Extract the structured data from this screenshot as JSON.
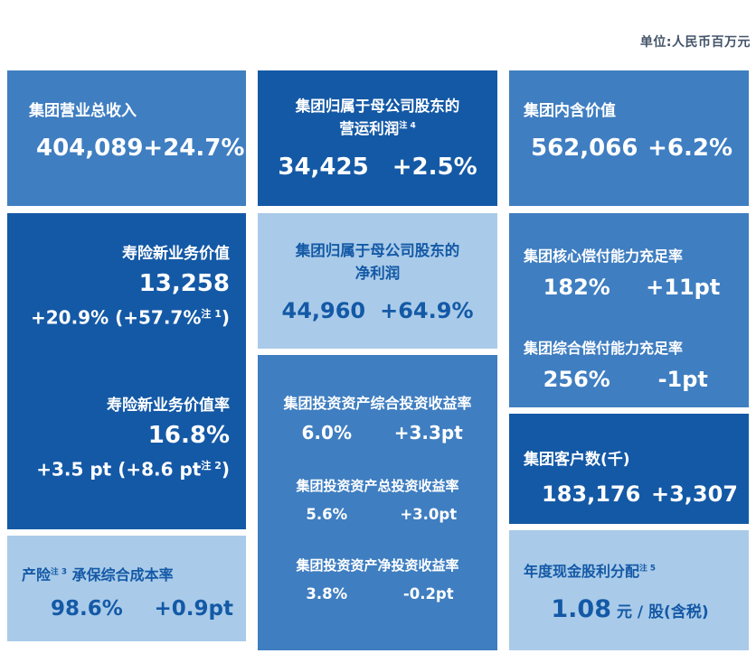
{
  "meta": {
    "unit_label": "单位:人民币百万元"
  },
  "colors": {
    "tile_medium": "#3F7EC1",
    "tile_dark": "#1459A6",
    "tile_light": "#A9CBE9",
    "text_on_light": "#1459A6",
    "unit_label": "#44546A"
  },
  "tiles": {
    "revenue": {
      "label": "集团营业总收入",
      "value": "404,089",
      "delta": "+24.7%"
    },
    "nbv": {
      "label": "寿险新业务价值",
      "value": "13,258",
      "delta_prefix": "+20.9% (+57.7%",
      "delta_note": "注 1",
      "delta_suffix": ")",
      "rate_label": "寿险新业务价值率",
      "rate_value": "16.8%",
      "rate_delta_prefix": "+3.5 pt (+8.6 pt",
      "rate_delta_note": "注 2",
      "rate_delta_suffix": ")"
    },
    "combined_ratio": {
      "label_prefix": "产险",
      "label_note": "注 3",
      "label_suffix": " 承保综合成本率",
      "value": "98.6%",
      "delta": "+0.9pt"
    },
    "operating_profit": {
      "label_line1": "集团归属于母公司股东的",
      "label_line2": "营运利润",
      "label_note": "注 4",
      "value": "34,425",
      "delta": "+2.5%"
    },
    "net_profit": {
      "label_line1": "集团归属于母公司股东的",
      "label_line2": "净利润",
      "value": "44,960",
      "delta": "+64.9%"
    },
    "investment": {
      "rows": [
        {
          "label": "集团投资资产综合投资收益率",
          "value": "6.0%",
          "delta": "+3.3pt"
        },
        {
          "label": "集团投资资产总投资收益率",
          "value": "5.6%",
          "delta": "+3.0pt"
        },
        {
          "label": "集团投资资产净投资收益率",
          "value": "3.8%",
          "delta": "-0.2pt"
        }
      ]
    },
    "embedded_value": {
      "label": "集团内含价值",
      "value": "562,066",
      "delta": "+6.2%"
    },
    "solvency": {
      "core_label": "集团核心偿付能力充足率",
      "core_value": "182%",
      "core_delta": "+11pt",
      "comprehensive_label": "集团综合偿付能力充足率",
      "comprehensive_value": "256%",
      "comprehensive_delta": "-1pt"
    },
    "customers": {
      "label": "集团客户数(千)",
      "value": "183,176",
      "delta": "+3,307"
    },
    "dividend": {
      "label": "年度现金股利分配",
      "label_note": "注 5",
      "value": "1.08",
      "unit": "元 / 股(含税)"
    }
  }
}
